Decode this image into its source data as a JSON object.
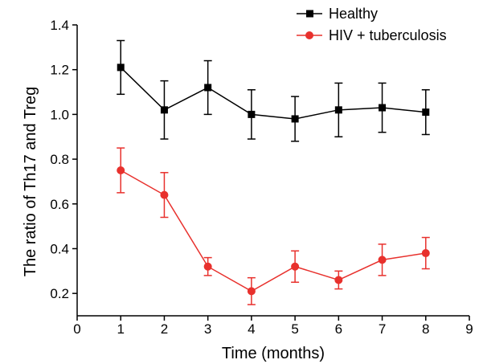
{
  "chart_data": {
    "type": "line",
    "title": "",
    "xlabel": "Time (months)",
    "ylabel": "The ratio of Th17 and Treg",
    "xlim": [
      0,
      9
    ],
    "ylim": [
      0.1,
      1.4
    ],
    "xticks": [
      0,
      1,
      2,
      3,
      4,
      5,
      6,
      7,
      8,
      9
    ],
    "xtick_labels": [
      "0",
      "1",
      "2",
      "3",
      "4",
      "5",
      "6",
      "7",
      "8",
      "9"
    ],
    "yticks": [
      0.2,
      0.4,
      0.6,
      0.8,
      1.0,
      1.2,
      1.4
    ],
    "ytick_labels": [
      "0.2",
      "0.4",
      "0.6",
      "0.8",
      "1.0",
      "1.2",
      "1.4"
    ],
    "grid": false,
    "legend_position": "top-right",
    "x": [
      1,
      2,
      3,
      4,
      5,
      6,
      7,
      8
    ],
    "series": [
      {
        "name": "Healthy",
        "color": "#000000",
        "marker": "square",
        "values": [
          1.21,
          1.02,
          1.12,
          1.0,
          0.98,
          1.02,
          1.03,
          1.01
        ],
        "errors": [
          0.12,
          0.13,
          0.12,
          0.11,
          0.1,
          0.12,
          0.11,
          0.1
        ]
      },
      {
        "name": "HIV + tuberculosis",
        "color": "#e8312d",
        "marker": "circle",
        "values": [
          0.75,
          0.64,
          0.32,
          0.21,
          0.32,
          0.26,
          0.35,
          0.38
        ],
        "errors": [
          0.1,
          0.1,
          0.04,
          0.06,
          0.07,
          0.04,
          0.07,
          0.07
        ]
      }
    ]
  }
}
